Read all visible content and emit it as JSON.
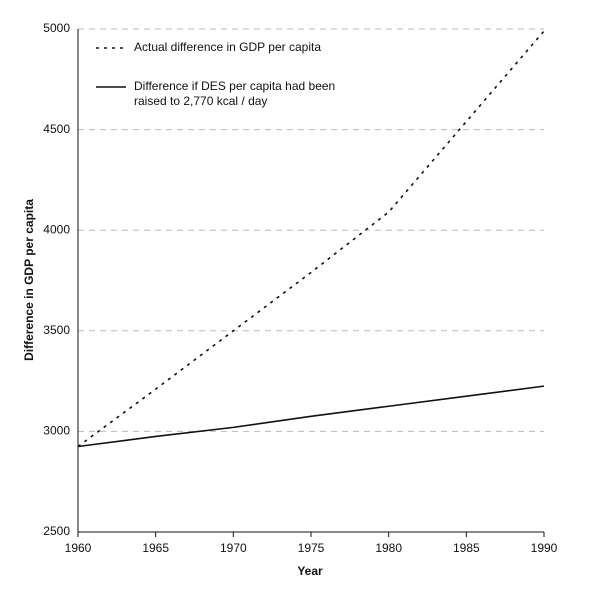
{
  "chart_data": {
    "type": "line",
    "x_label": "Year",
    "y_label": "Difference in GDP per capita",
    "x": [
      1960,
      1965,
      1970,
      1975,
      1980,
      1985,
      1990
    ],
    "series": [
      {
        "name": "Actual difference in GDP per capita",
        "color": "#111111",
        "dash": true,
        "values": [
          2925,
          3210,
          3500,
          3790,
          4090,
          4540,
          4990
        ]
      },
      {
        "name": "Difference if DES per capita had been raised to 2,770 kcal / day",
        "color": "#111111",
        "dash": false,
        "values": [
          2925,
          2975,
          3020,
          3075,
          3125,
          3175,
          3225
        ]
      }
    ],
    "xlim": [
      1960,
      1990
    ],
    "xticks": [
      1960,
      1965,
      1970,
      1975,
      1980,
      1985,
      1990
    ],
    "ylim": [
      2500,
      5000
    ],
    "yticks": [
      2500,
      3000,
      3500,
      4000,
      4500,
      5000
    ],
    "grid": true,
    "legend": "upper-left"
  }
}
